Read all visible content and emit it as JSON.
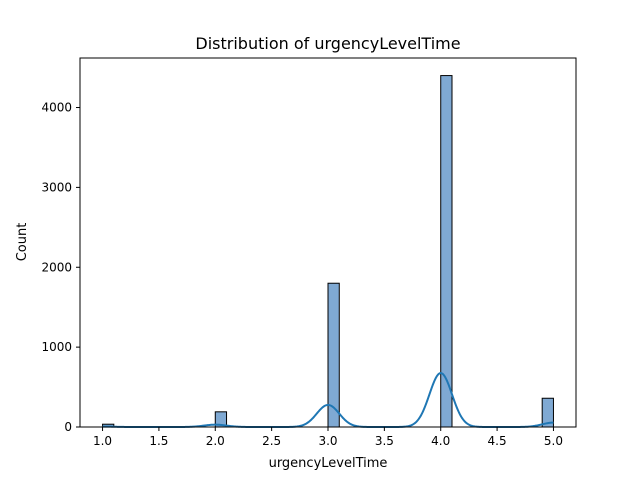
{
  "chart_data": {
    "type": "histogram",
    "title": "Distribution of urgencyLevelTime",
    "xlabel": "urgencyLevelTime",
    "ylabel": "Count",
    "xlim": [
      0.8,
      5.2
    ],
    "ylim": [
      0,
      4620
    ],
    "x_ticks": [
      1.0,
      1.5,
      2.0,
      2.5,
      3.0,
      3.5,
      4.0,
      4.5,
      5.0
    ],
    "x_tick_labels": [
      "1.0",
      "1.5",
      "2.0",
      "2.5",
      "3.0",
      "3.5",
      "4.0",
      "4.5",
      "5.0"
    ],
    "y_ticks": [
      0,
      1000,
      2000,
      3000,
      4000
    ],
    "y_tick_labels": [
      "0",
      "1000",
      "2000",
      "3000",
      "4000"
    ],
    "bin_width": 0.1,
    "bars": [
      {
        "x": 1.0,
        "count": 35
      },
      {
        "x": 2.0,
        "count": 190
      },
      {
        "x": 3.0,
        "count": 1800
      },
      {
        "x": 4.0,
        "count": 4400
      },
      {
        "x": 4.9,
        "count": 360
      }
    ],
    "kde": {
      "components": [
        {
          "mu": 1.0,
          "count": 35
        },
        {
          "mu": 2.0,
          "count": 190
        },
        {
          "mu": 3.0,
          "count": 1800
        },
        {
          "mu": 4.0,
          "count": 4400
        },
        {
          "mu": 5.0,
          "count": 360
        }
      ],
      "bandwidth": 0.1,
      "scale_to_bin": true
    },
    "colors": {
      "bar_fill": "#7fa9d3",
      "bar_stroke": "#000000",
      "kde_line": "#1f77b4"
    },
    "grid": false,
    "legend": "none"
  }
}
